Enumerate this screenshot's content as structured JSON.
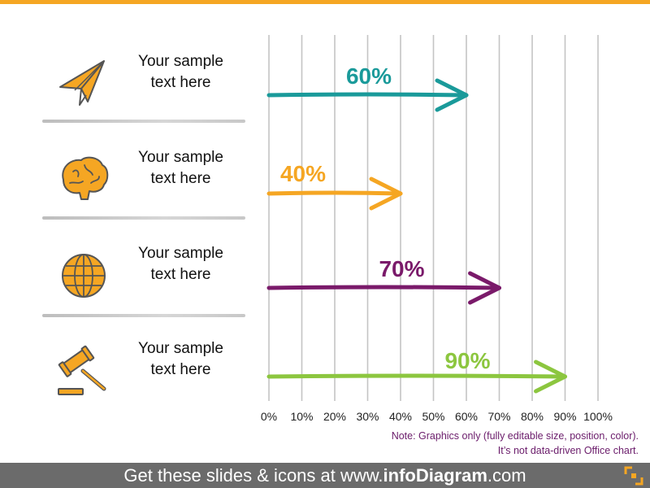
{
  "items": [
    {
      "line1": "Your sample",
      "line2": "text here",
      "icon": "paper-plane-icon"
    },
    {
      "line1": "Your sample",
      "line2": "text here",
      "icon": "brain-icon"
    },
    {
      "line1": "Your sample",
      "line2": "text here",
      "icon": "globe-icon"
    },
    {
      "line1": "Your sample",
      "line2": "text here",
      "icon": "gavel-icon"
    }
  ],
  "chart_data": {
    "type": "bar",
    "categories": [
      "Your sample text here",
      "Your sample text here",
      "Your sample text here",
      "Your sample text here"
    ],
    "values": [
      60,
      40,
      70,
      90
    ],
    "value_labels": [
      "60%",
      "40%",
      "70%",
      "90%"
    ],
    "colors": [
      "#1a9a9a",
      "#f5a623",
      "#7a1a6a",
      "#8cc63f"
    ],
    "xlim": [
      0,
      100
    ],
    "xticks": [
      0,
      10,
      20,
      30,
      40,
      50,
      60,
      70,
      80,
      90,
      100
    ],
    "xtick_labels": [
      "0%",
      "10%",
      "20%",
      "30%",
      "40%",
      "50%",
      "60%",
      "70%",
      "80%",
      "90%",
      "100%"
    ],
    "grid": true,
    "orientation": "horizontal",
    "mark_style": "arrow"
  },
  "note": {
    "line1": "Note: Graphics only (fully editable size, position, color).",
    "line2": "It’s not data-driven Office chart."
  },
  "footer": {
    "prefix": "Get these slides & icons at www.",
    "brand": "infoDiagram",
    "suffix": ".com"
  },
  "colors": {
    "accent": "#f5a623",
    "icon_fill": "#f5a623",
    "footer_bg": "#6b6b6b",
    "note_text": "#6a1b6a"
  }
}
